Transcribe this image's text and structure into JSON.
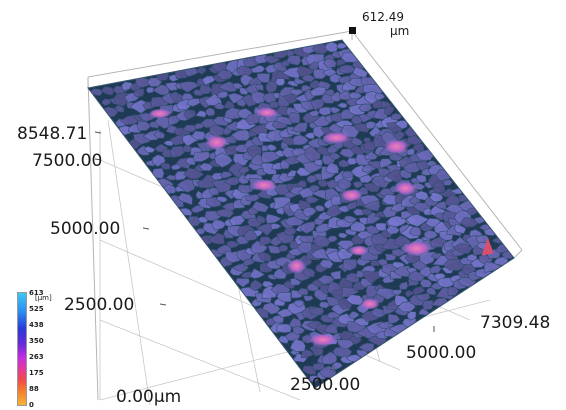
{
  "axes": {
    "z_top_value": "612.49",
    "z_top_unit": "µm",
    "y_max": "8548.71",
    "y_7500": "7500.00",
    "y_5000": "5000.00",
    "y_2500": "2500.00",
    "origin": "0.00µm",
    "x_2500": "2500.00",
    "x_5000": "5000.00",
    "x_max": "7309.48"
  },
  "legend": {
    "unit": "[µm]",
    "values": [
      "613",
      "525",
      "438",
      "350",
      "263",
      "175",
      "88",
      "0"
    ],
    "colors": [
      "#3ec7f5",
      "#2c8ff0",
      "#2a3ad8",
      "#6a2ad8",
      "#c42ee0",
      "#e23a9a",
      "#f04a4a",
      "#f5822c",
      "#f7b338"
    ]
  },
  "surface": {
    "base_color": "#1f3b56",
    "grain_color": "#7d77c9",
    "peak_color": "#d9559a"
  }
}
